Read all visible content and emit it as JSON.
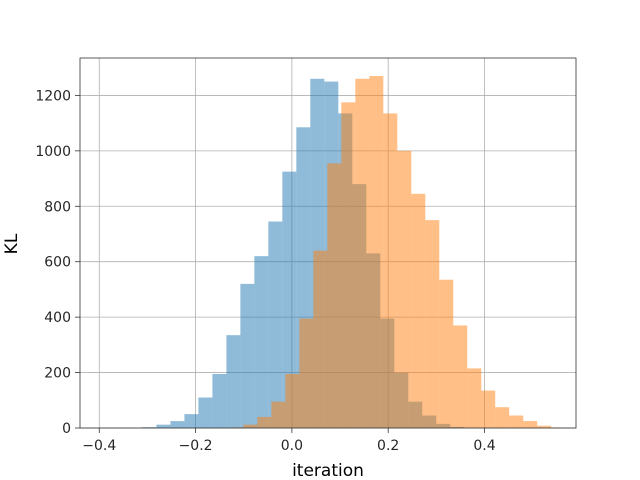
{
  "chart_data": {
    "type": "bar",
    "subtype": "overlaid-histogram",
    "title": "",
    "xlabel": "iteration",
    "ylabel": "KL",
    "xlim": [
      -0.44,
      0.59
    ],
    "ylim": [
      0,
      1335
    ],
    "xticks": [
      -0.4,
      -0.2,
      0.0,
      0.2,
      0.4
    ],
    "xtick_labels": [
      "−0.4",
      "−0.2",
      "0.0",
      "0.2",
      "0.4"
    ],
    "yticks": [
      0,
      200,
      400,
      600,
      800,
      1000,
      1200
    ],
    "ytick_labels": [
      "0",
      "200",
      "400",
      "600",
      "800",
      "1000",
      "1200"
    ],
    "grid": true,
    "legend": "none",
    "series": [
      {
        "color": "#1f77b4",
        "opacity": 0.5,
        "bin_width": 0.02905,
        "bins_start": -0.3103,
        "counts": [
          3,
          12,
          25,
          50,
          110,
          195,
          335,
          520,
          620,
          745,
          925,
          1085,
          1260,
          1250,
          1135,
          880,
          630,
          395,
          200,
          95,
          45,
          15,
          4
        ]
      },
      {
        "color": "#ff7f0e",
        "opacity": 0.5,
        "bin_width": 0.02905,
        "bins_start": -0.1297,
        "counts": [
          2,
          12,
          40,
          95,
          195,
          395,
          640,
          955,
          1175,
          1260,
          1270,
          1135,
          1000,
          845,
          750,
          535,
          370,
          215,
          135,
          75,
          45,
          25,
          8,
          2
        ]
      }
    ]
  }
}
